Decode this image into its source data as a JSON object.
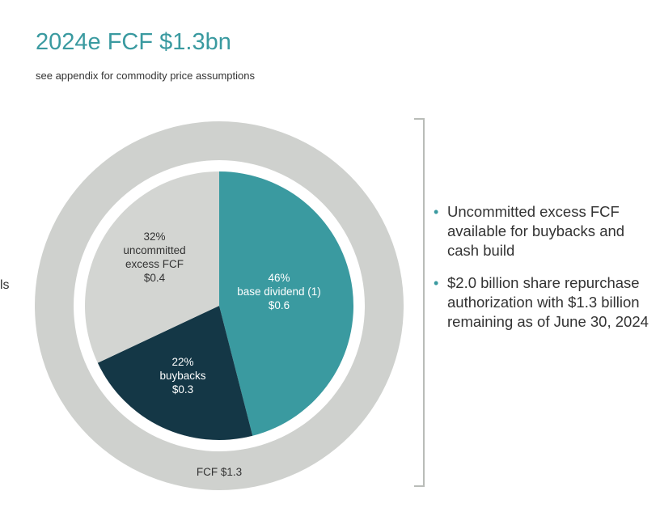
{
  "header": {
    "title": "2024e FCF $1.3bn",
    "subtitle": "see appendix for commodity price assumptions"
  },
  "edge_fragment": "ls",
  "colors": {
    "accent": "#3a9aa0",
    "outer_ring": "#cfd1ce",
    "base_dividend": "#3a9aa0",
    "buybacks": "#143746",
    "uncommitted": "#d3d5d2",
    "text_dark": "#333333"
  },
  "chart_data": {
    "type": "pie",
    "total_label": "FCF $1.3",
    "slices": [
      {
        "percent_label": "46%",
        "lines": [
          "base dividend (1)"
        ],
        "value_label": "$0.6",
        "percent": 46,
        "color": "#3a9aa0",
        "text_color": "#ffffff"
      },
      {
        "percent_label": "22%",
        "lines": [
          "buybacks"
        ],
        "value_label": "$0.3",
        "percent": 22,
        "color": "#143746",
        "text_color": "#ffffff"
      },
      {
        "percent_label": "32%",
        "lines": [
          "uncommitted",
          "excess FCF"
        ],
        "value_label": "$0.4",
        "percent": 32,
        "color": "#d3d5d2",
        "text_color": "#333333"
      }
    ]
  },
  "notes": [
    {
      "icon": "bullet-icon",
      "text": "Uncommitted excess FCF available for buybacks and cash build"
    },
    {
      "icon": "bullet-icon",
      "text": "$2.0 billion share repurchase authorization with $1.3 billion remaining as of June 30, 2024"
    }
  ]
}
